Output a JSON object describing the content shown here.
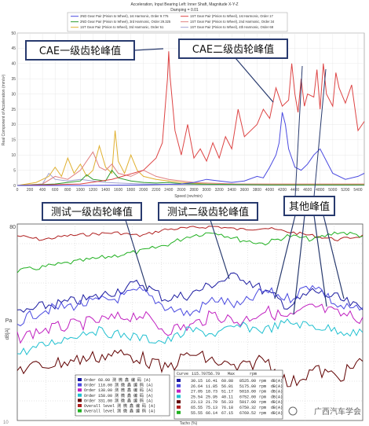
{
  "chart_data": [
    {
      "type": "line",
      "title": "Acceleration, Input Bearing Left: Inner Shaft, Magnitude X-Y-Z",
      "subtitle": "Damping = 0.01",
      "xlabel": "Speed (rev/min)",
      "ylabel": "Real Component of Acceleration (mm/s²)",
      "xlim": [
        0,
        5500
      ],
      "ylim": [
        0,
        50
      ],
      "x_ticks": [
        "0",
        "200",
        "400",
        "600",
        "800",
        "1000",
        "1200",
        "1400",
        "1600",
        "1800",
        "2000",
        "2200",
        "2400",
        "2600",
        "2800",
        "3000",
        "3200",
        "3400",
        "3600",
        "3800",
        "4000",
        "4200",
        "4400",
        "4600",
        "4800",
        "5000",
        "5200",
        "5400"
      ],
      "y_ticks": [
        "0",
        "5",
        "10",
        "15",
        "20",
        "25",
        "30",
        "35",
        "40",
        "45",
        "50"
      ],
      "legend": [
        "2ND Gear Pair (Pinion to Wheel), 1st Harmonic, Order 9.775",
        "1ST Gear Pair (Pinion to Wheel), 1st Harmonic, Order 17",
        "2ND Gear Pair (Pinion to Wheel), 3rd Harmonic, Order 29.325",
        "1ST Gear Pair (Pinion to Wheel), 2nd Harmonic, Order 34",
        "1ST Gear Pair (Pinion to Wheel), 3rd Harmonic, Order 51",
        "1ST Gear Pair (Pinion to Wheel), 4th Harmonic, Order 68"
      ],
      "series": [
        {
          "name": "2ND Gear Pair (Pinion to Wheel), 1st Harmonic, Order 9.775",
          "color": "#4a4ae0",
          "x": [
            0,
            1000,
            2000,
            2600,
            2800,
            3000,
            3200,
            3400,
            3600,
            3800,
            3900,
            4000,
            4100,
            4150,
            4200,
            4250,
            4300,
            4400,
            4500,
            4600,
            4700,
            4800,
            4900,
            5000,
            5200,
            5400,
            5500
          ],
          "y": [
            0,
            0,
            0.2,
            0.5,
            1,
            2,
            1.5,
            1,
            1.5,
            3,
            2.5,
            6,
            10,
            14,
            24,
            20,
            12,
            6,
            5,
            7,
            10,
            12,
            8,
            4,
            2,
            3,
            4
          ]
        },
        {
          "name": "1ST Gear Pair (Pinion to Wheel), 1st Harmonic, Order 17",
          "color": "#dd4444",
          "x": [
            0,
            1000,
            1500,
            2000,
            2200,
            2300,
            2380,
            2400,
            2420,
            2500,
            2600,
            2700,
            2800,
            2900,
            3000,
            3100,
            3200,
            3300,
            3400,
            3500,
            3600,
            3700,
            3800,
            3900,
            4000,
            4100,
            4200,
            4300,
            4350,
            4400,
            4450,
            4500,
            4550,
            4600,
            4700,
            4750,
            4800,
            4850,
            4900,
            5000,
            5050,
            5100,
            5200,
            5300,
            5400,
            5500
          ],
          "y": [
            0,
            0.5,
            2,
            5,
            9,
            14,
            35,
            44,
            36,
            18,
            10,
            20,
            9,
            12,
            8,
            14,
            9,
            16,
            12,
            25,
            16,
            18,
            20,
            25,
            22,
            32,
            26,
            28,
            40,
            30,
            24,
            35,
            26,
            30,
            29,
            38,
            25,
            40,
            30,
            26,
            37,
            32,
            27,
            33,
            18,
            21
          ]
        },
        {
          "name": "2ND Gear Pair (Pinion to Wheel), 3rd Harmonic, Order 29.325",
          "color": "#2a9a2a",
          "x": [
            0,
            600,
            800,
            1000,
            1100,
            1200,
            1400,
            1500,
            1600,
            1800,
            2000,
            2200,
            2400,
            2600,
            2800,
            3000,
            3500,
            4000,
            5500
          ],
          "y": [
            0,
            0.5,
            1,
            1.5,
            3.5,
            2,
            1.5,
            5,
            2.5,
            1.5,
            1,
            0.8,
            1,
            0.6,
            0.5,
            0.4,
            0.3,
            0.2,
            0.2
          ]
        },
        {
          "name": "1ST Gear Pair (Pinion to Wheel), 2nd Harmonic, Order 34",
          "color": "#e08080",
          "x": [
            0,
            400,
            600,
            800,
            1000,
            1200,
            1300,
            1400,
            1500,
            1600,
            1800,
            2000,
            2200,
            2400,
            2600,
            2800,
            3000,
            3500,
            5500
          ],
          "y": [
            0,
            0.5,
            3,
            2,
            5,
            11,
            6,
            5,
            7,
            4,
            3,
            5,
            3,
            2,
            1.5,
            1,
            0.8,
            0.5,
            0.5
          ]
        },
        {
          "name": "1ST Gear Pair (Pinion to Wheel), 3rd Harmonic, Order 51",
          "color": "#e0b030",
          "x": [
            0,
            300,
            500,
            600,
            700,
            800,
            900,
            1000,
            1100,
            1200,
            1300,
            1400,
            1500,
            1550,
            1600,
            1700,
            1800,
            1900,
            2000,
            2200,
            2400,
            2600,
            3000,
            5500
          ],
          "y": [
            0,
            1,
            3,
            6,
            3,
            9,
            4,
            7,
            3,
            5,
            13,
            6,
            4,
            18,
            8,
            4,
            10,
            5,
            3,
            2,
            1.5,
            1,
            0.5,
            0.3
          ]
        },
        {
          "name": "1ST Gear Pair (Pinion to Wheel), 4th Harmonic, Order 68",
          "color": "#a0a0d0",
          "x": [
            0,
            400,
            500,
            600,
            800,
            1000,
            1200,
            1400,
            1600,
            2000,
            2500,
            5500
          ],
          "y": [
            0,
            0.5,
            4,
            2,
            1.5,
            2,
            1.5,
            1,
            0.8,
            0.5,
            0.3,
            0.2
          ]
        }
      ]
    },
    {
      "type": "line",
      "y_top_tick": "80",
      "ylabel_unit": "Pa",
      "ylabel_scale": "dB[A]",
      "x_axis_partial_label": "Tacho (%)",
      "series_legend": [
        {
          "label": "Order 68.00 测 微 鑫 编 码 (A)",
          "color": "#1a1aa0"
        },
        {
          "label": "Order 118.00 测 微 鑫 编 码 (A)",
          "color": "#4a4ae0"
        },
        {
          "label": "Order 138.00 测 微 鑫 编 码 (A)",
          "color": "#c020c0"
        },
        {
          "label": "Order 158.00 测 微 鑫 编 码 (A)",
          "color": "#20c0d0"
        },
        {
          "label": "Order 331.00 测 微 鑫 编 码 (A)",
          "color": "#600000"
        },
        {
          "label": "Overall level 测 微 鑫 编 码 (A)",
          "color": "#b02020"
        },
        {
          "label": "Overall level 测 微 鑫 编 码 (A)",
          "color": "#20b020"
        }
      ],
      "readout_header": [
        "Curve",
        "115.70",
        "756.70",
        "Max",
        "rpm"
      ],
      "readout_rows": [
        [
          "30.15",
          "16.41",
          "60.88",
          "8525.00",
          "rpm",
          "dB(A)"
        ],
        [
          "26.64",
          "11.85",
          "56.81",
          "5175.00",
          "rpm",
          "dB(A)"
        ],
        [
          "27.05",
          "18.73",
          "51.17",
          "5018.00",
          "rpm",
          "dB(A)"
        ],
        [
          "25.54",
          "25.95",
          "40.11",
          "6752.00",
          "rpm",
          "dB(A)"
        ],
        [
          "23.13",
          "21.79",
          "56.33",
          "5017.00",
          "rpm",
          "dB(A)"
        ],
        [
          "65.55",
          "75.13",
          "76.18",
          "6750.32",
          "rpm",
          "dB(A)"
        ],
        [
          "55.55",
          "66.14",
          "67.15",
          "6769.52",
          "rpm",
          "dB(A)"
        ]
      ],
      "series": [
        {
          "name": "Overall level",
          "color": "#b02020"
        },
        {
          "name": "Overall level",
          "color": "#20b020"
        },
        {
          "name": "Order 68.00",
          "color": "#1a1aa0"
        },
        {
          "name": "Order 118.00",
          "color": "#4a4ae0"
        },
        {
          "name": "Order 138.00",
          "color": "#c020c0"
        },
        {
          "name": "Order 158.00",
          "color": "#20c0d0"
        },
        {
          "name": "Order 331.00",
          "color": "#600000"
        }
      ]
    }
  ],
  "annotations": {
    "cae_first": "CAE一级齿轮峰值",
    "cae_second": "CAE二级齿轮峰值",
    "test_first": "测试一级齿轮峰值",
    "test_second": "测试二级齿轮峰值",
    "other_peaks": "其他峰值"
  },
  "watermark": "广西汽车学会",
  "corner_mark": "10"
}
